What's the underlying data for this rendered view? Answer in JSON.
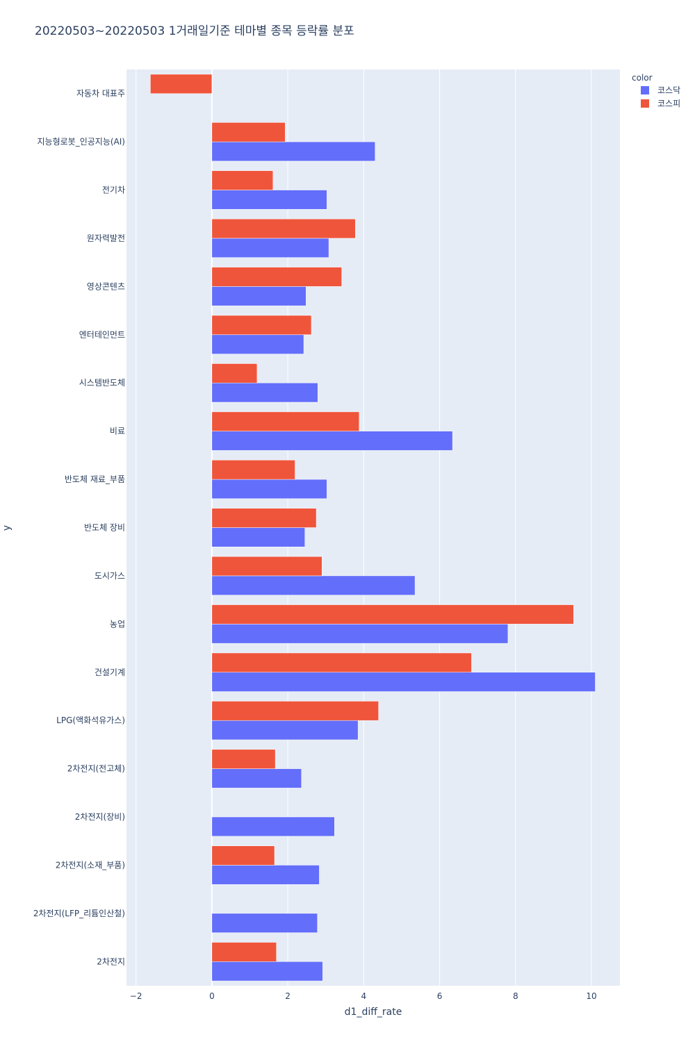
{
  "chart_data": {
    "type": "bar",
    "orientation": "horizontal",
    "barmode": "group",
    "title": "20220503~20220503 1거래일기준 테마별 종목 등락률 분포",
    "xlabel": "d1_diff_rate",
    "ylabel": "y",
    "xlim": [
      -2.25,
      10.75
    ],
    "xticks": [
      -2,
      0,
      2,
      4,
      6,
      8,
      10
    ],
    "xtick_labels": [
      "−2",
      "0",
      "2",
      "4",
      "6",
      "8",
      "10"
    ],
    "grid": true,
    "legend_title": "color",
    "legend_position": "top-right",
    "categories": [
      "자동차 대표주",
      "지능형로봇_인공지능(AI)",
      "전기차",
      "원자력발전",
      "영상콘텐츠",
      "엔터테인먼트",
      "시스템반도체",
      "비료",
      "반도체 재료_부품",
      "반도체 장비",
      "도시가스",
      "농업",
      "건설기계",
      "LPG(액화석유가스)",
      "2차전지(전고체)",
      "2차전지(장비)",
      "2차전지(소재_부품)",
      "2차전지(LFP_리튬인산철)",
      "2차전지"
    ],
    "series": [
      {
        "name": "코스닥",
        "color": "#636efa",
        "values": [
          null,
          4.3,
          3.03,
          3.08,
          2.48,
          2.42,
          2.79,
          6.34,
          3.03,
          2.45,
          5.35,
          7.8,
          10.1,
          3.85,
          2.36,
          3.23,
          2.83,
          2.78,
          2.92
        ]
      },
      {
        "name": "코스피",
        "color": "#ef553b",
        "values": [
          -1.62,
          1.93,
          1.61,
          3.78,
          3.42,
          2.62,
          1.19,
          3.88,
          2.19,
          2.75,
          2.9,
          9.53,
          6.84,
          4.39,
          1.67,
          null,
          1.65,
          null,
          1.7
        ]
      }
    ]
  }
}
